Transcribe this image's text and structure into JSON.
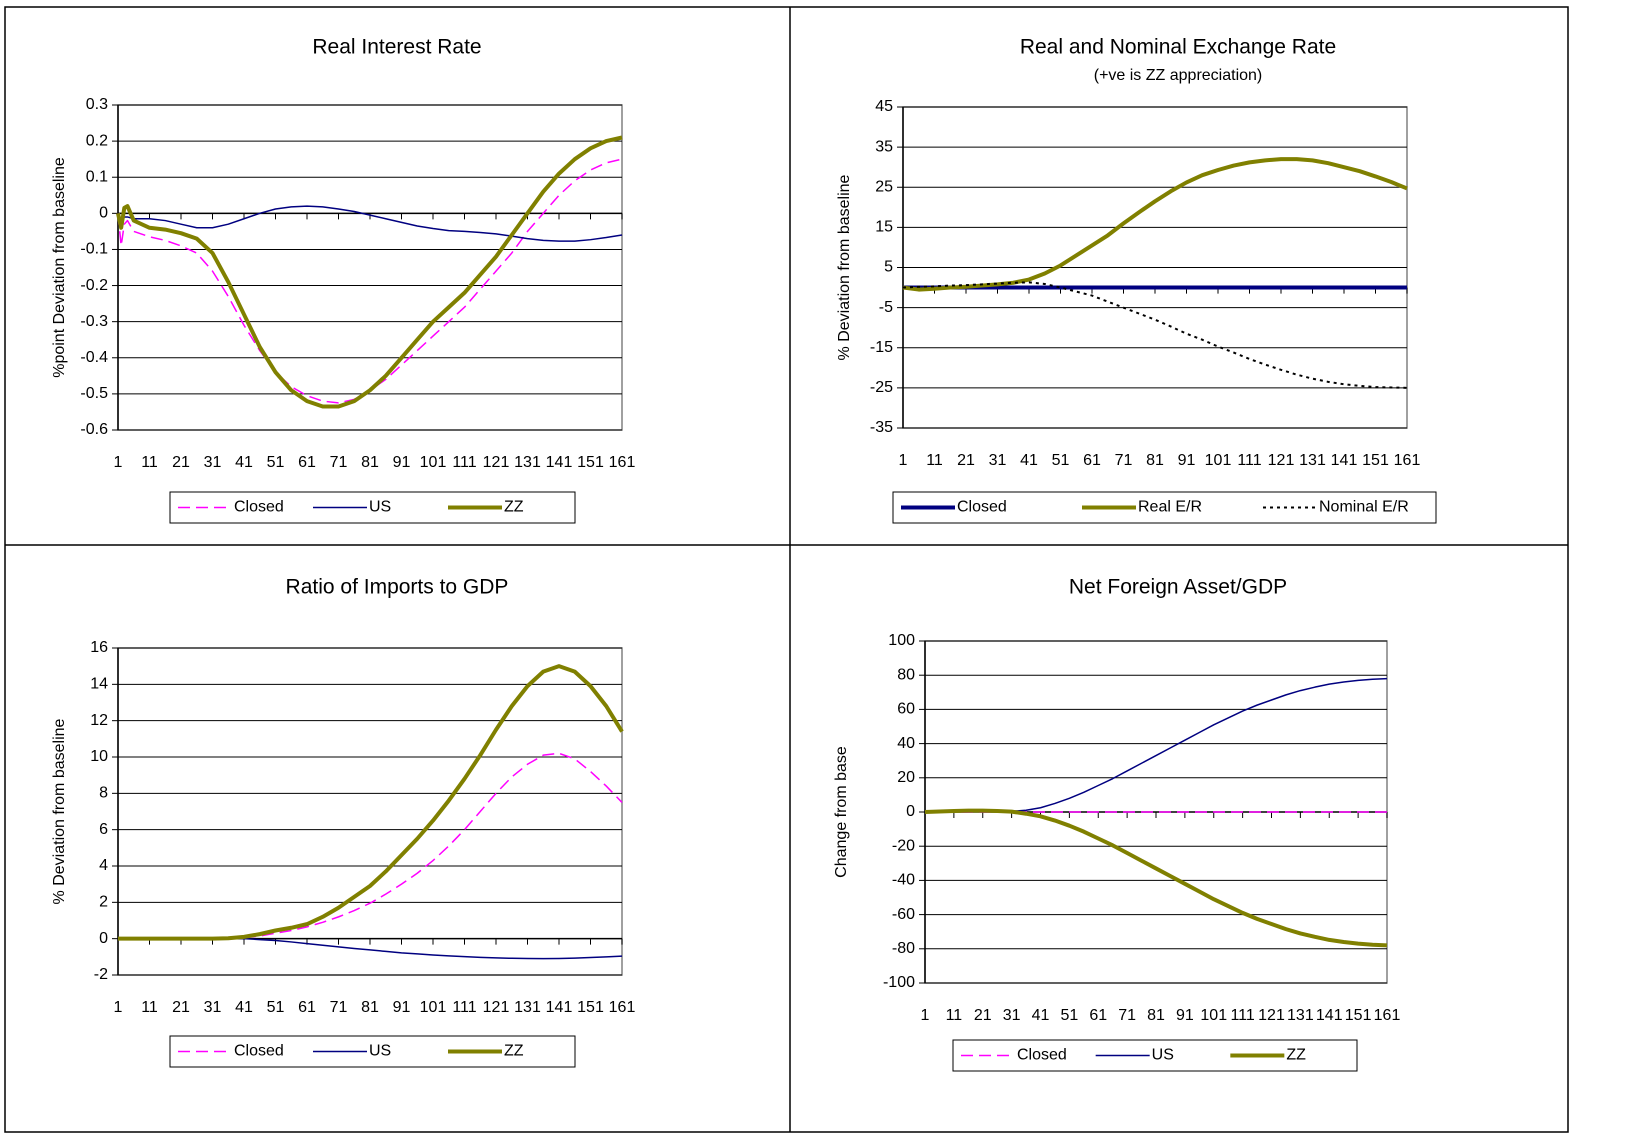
{
  "chart_data": [
    {
      "type": "line",
      "title": "Real Interest Rate",
      "y_label": "%point  Deviation from baseline",
      "x": [
        1,
        2,
        3,
        4,
        6,
        11,
        16,
        21,
        26,
        31,
        36,
        41,
        46,
        51,
        56,
        61,
        66,
        71,
        76,
        81,
        86,
        91,
        96,
        101,
        106,
        111,
        116,
        121,
        126,
        131,
        136,
        141,
        146,
        151,
        156,
        161
      ],
      "xlim": [
        1,
        161
      ],
      "xticks": [
        1,
        11,
        21,
        31,
        41,
        51,
        61,
        71,
        81,
        91,
        101,
        111,
        121,
        131,
        141,
        151,
        161
      ],
      "ylim": [
        -0.6,
        0.3
      ],
      "yticks": [
        -0.6,
        -0.5,
        -0.4,
        -0.3,
        -0.2,
        -0.1,
        0,
        0.1,
        0.2,
        0.3
      ],
      "grid": true,
      "series": [
        {
          "name": "Closed",
          "color": "#ff00ff",
          "dash": "dashed",
          "line_width": 1.5,
          "values": [
            0,
            -0.09,
            -0.03,
            -0.02,
            -0.05,
            -0.065,
            -0.075,
            -0.09,
            -0.11,
            -0.16,
            -0.23,
            -0.31,
            -0.38,
            -0.44,
            -0.48,
            -0.505,
            -0.52,
            -0.525,
            -0.515,
            -0.49,
            -0.46,
            -0.42,
            -0.38,
            -0.34,
            -0.3,
            -0.26,
            -0.21,
            -0.16,
            -0.11,
            -0.05,
            0,
            0.05,
            0.09,
            0.12,
            0.14,
            0.15
          ]
        },
        {
          "name": "US",
          "color": "#000080",
          "dash": "solid",
          "line_width": 1.5,
          "values": [
            0,
            -0.03,
            -0.01,
            -0.01,
            -0.015,
            -0.015,
            -0.02,
            -0.03,
            -0.04,
            -0.04,
            -0.03,
            -0.015,
            0,
            0.012,
            0.018,
            0.02,
            0.018,
            0.012,
            0.005,
            -0.005,
            -0.015,
            -0.025,
            -0.035,
            -0.042,
            -0.048,
            -0.05,
            -0.053,
            -0.057,
            -0.063,
            -0.07,
            -0.075,
            -0.077,
            -0.077,
            -0.073,
            -0.067,
            -0.06
          ]
        },
        {
          "name": "ZZ",
          "color": "#808000",
          "dash": "solid",
          "line_width": 4,
          "values": [
            0,
            -0.04,
            0.015,
            0.02,
            -0.02,
            -0.04,
            -0.045,
            -0.055,
            -0.07,
            -0.11,
            -0.19,
            -0.28,
            -0.37,
            -0.44,
            -0.49,
            -0.52,
            -0.535,
            -0.535,
            -0.52,
            -0.49,
            -0.45,
            -0.4,
            -0.35,
            -0.3,
            -0.26,
            -0.22,
            -0.17,
            -0.12,
            -0.06,
            0,
            0.06,
            0.11,
            0.15,
            0.18,
            0.2,
            0.21
          ]
        }
      ]
    },
    {
      "type": "line",
      "title": "Real and Nominal Exchange Rate",
      "subtitle": "(+ve is ZZ appreciation)",
      "y_label": "%  Deviation from baseline",
      "x": [
        1,
        6,
        11,
        16,
        21,
        26,
        31,
        36,
        41,
        46,
        51,
        56,
        61,
        66,
        71,
        76,
        81,
        86,
        91,
        96,
        101,
        106,
        111,
        116,
        121,
        126,
        131,
        136,
        141,
        146,
        151,
        156,
        161
      ],
      "xlim": [
        1,
        161
      ],
      "xticks": [
        1,
        11,
        21,
        31,
        41,
        51,
        61,
        71,
        81,
        91,
        101,
        111,
        121,
        131,
        141,
        151,
        161
      ],
      "ylim": [
        -35,
        45
      ],
      "yticks": [
        -35,
        -25,
        -15,
        -5,
        5,
        15,
        25,
        35,
        45
      ],
      "grid": true,
      "series": [
        {
          "name": "Closed",
          "color": "#000080",
          "dash": "solid",
          "line_width": 4,
          "values": [
            0,
            0,
            0,
            0,
            0,
            0,
            0,
            0,
            0,
            0,
            0,
            0,
            0,
            0,
            0,
            0,
            0,
            0,
            0,
            0,
            0,
            0,
            0,
            0,
            0,
            0,
            0,
            0,
            0,
            0,
            0,
            0,
            0
          ]
        },
        {
          "name": "Real E/R",
          "color": "#808000",
          "dash": "solid",
          "line_width": 4,
          "values": [
            0,
            -0.5,
            -0.3,
            0,
            0.2,
            0.5,
            0.8,
            1.2,
            2,
            3.5,
            5.5,
            8,
            10.5,
            13,
            16,
            18.8,
            21.5,
            24,
            26.2,
            28,
            29.3,
            30.4,
            31.2,
            31.7,
            32,
            32,
            31.7,
            31,
            30,
            29,
            27.7,
            26.3,
            24.7
          ]
        },
        {
          "name": "Nominal E/R",
          "color": "#000000",
          "dash": "dotted",
          "line_width": 2,
          "values": [
            0,
            0.2,
            0.3,
            0.5,
            0.6,
            0.8,
            1,
            1.2,
            1.3,
            0.9,
            0,
            -1,
            -2,
            -3.5,
            -5,
            -6.5,
            -8,
            -9.7,
            -11.5,
            -13,
            -14.7,
            -16.2,
            -17.8,
            -19.2,
            -20.5,
            -21.7,
            -22.7,
            -23.5,
            -24.1,
            -24.5,
            -24.8,
            -24.9,
            -25
          ]
        }
      ]
    },
    {
      "type": "line",
      "title": "Ratio of Imports to GDP",
      "y_label": "%  Deviation from baseline",
      "x": [
        1,
        6,
        11,
        16,
        21,
        26,
        31,
        36,
        41,
        46,
        51,
        56,
        61,
        66,
        71,
        76,
        81,
        86,
        91,
        96,
        101,
        106,
        111,
        116,
        121,
        126,
        131,
        136,
        141,
        146,
        151,
        156,
        161
      ],
      "xlim": [
        1,
        161
      ],
      "xticks": [
        1,
        11,
        21,
        31,
        41,
        51,
        61,
        71,
        81,
        91,
        101,
        111,
        121,
        131,
        141,
        151,
        161
      ],
      "ylim": [
        -2,
        16
      ],
      "yticks": [
        -2,
        0,
        2,
        4,
        6,
        8,
        10,
        12,
        14,
        16
      ],
      "grid": true,
      "series": [
        {
          "name": "Closed",
          "color": "#ff00ff",
          "dash": "dashed",
          "line_width": 1.5,
          "values": [
            0,
            0,
            0,
            0,
            0,
            0,
            0,
            0.02,
            0.05,
            0.15,
            0.3,
            0.45,
            0.65,
            0.9,
            1.2,
            1.55,
            1.95,
            2.45,
            3,
            3.6,
            4.3,
            5.1,
            6,
            7,
            8,
            8.9,
            9.6,
            10.1,
            10.2,
            9.9,
            9.2,
            8.4,
            7.5
          ]
        },
        {
          "name": "US",
          "color": "#000080",
          "dash": "solid",
          "line_width": 1.5,
          "values": [
            0,
            0,
            0,
            0,
            0,
            0,
            0,
            0,
            0,
            -0.05,
            -0.1,
            -0.18,
            -0.27,
            -0.36,
            -0.45,
            -0.54,
            -0.62,
            -0.7,
            -0.78,
            -0.84,
            -0.9,
            -0.95,
            -0.99,
            -1.03,
            -1.06,
            -1.08,
            -1.09,
            -1.1,
            -1.09,
            -1.07,
            -1.04,
            -1,
            -0.96
          ]
        },
        {
          "name": "ZZ",
          "color": "#808000",
          "dash": "solid",
          "line_width": 4,
          "values": [
            0,
            0,
            0,
            0,
            0,
            0,
            0,
            0.02,
            0.1,
            0.25,
            0.45,
            0.6,
            0.8,
            1.2,
            1.7,
            2.3,
            2.9,
            3.7,
            4.6,
            5.5,
            6.5,
            7.6,
            8.8,
            10.1,
            11.5,
            12.8,
            13.9,
            14.7,
            15,
            14.7,
            13.9,
            12.8,
            11.4
          ]
        }
      ]
    },
    {
      "type": "line",
      "title": "Net Foreign Asset/GDP",
      "y_label": "Change from base",
      "x": [
        1,
        6,
        11,
        16,
        21,
        26,
        31,
        36,
        41,
        46,
        51,
        56,
        61,
        66,
        71,
        76,
        81,
        86,
        91,
        96,
        101,
        106,
        111,
        116,
        121,
        126,
        131,
        136,
        141,
        146,
        151,
        156,
        161
      ],
      "xlim": [
        1,
        161
      ],
      "xticks": [
        1,
        11,
        21,
        31,
        41,
        51,
        61,
        71,
        81,
        91,
        101,
        111,
        121,
        131,
        141,
        151,
        161
      ],
      "ylim": [
        -100,
        100
      ],
      "yticks": [
        -100,
        -80,
        -60,
        -40,
        -20,
        0,
        20,
        40,
        60,
        80,
        100
      ],
      "grid": true,
      "series": [
        {
          "name": "Closed",
          "color": "#ff00ff",
          "dash": "dashed",
          "line_width": 1.5,
          "values": [
            0,
            0,
            0,
            0,
            0,
            0,
            0,
            0,
            0,
            0,
            0,
            0,
            0,
            0,
            0,
            0,
            0,
            0,
            0,
            0,
            0,
            0,
            0,
            0,
            0,
            0,
            0,
            0,
            0,
            0,
            0,
            0,
            0
          ]
        },
        {
          "name": "US",
          "color": "#000080",
          "dash": "solid",
          "line_width": 1.5,
          "values": [
            0,
            0.3,
            0.6,
            0.8,
            0.8,
            0.6,
            0.4,
            1,
            2.5,
            5,
            8,
            11.5,
            15.5,
            19.5,
            24,
            28.5,
            33,
            37.5,
            42,
            46.5,
            51,
            55,
            59,
            62.5,
            65.5,
            68.5,
            71,
            73,
            74.8,
            76,
            77,
            77.6,
            78
          ]
        },
        {
          "name": "ZZ",
          "color": "#808000",
          "dash": "solid",
          "line_width": 4,
          "values": [
            0,
            0.3,
            0.6,
            0.8,
            0.8,
            0.6,
            0.2,
            -1,
            -2.5,
            -5,
            -8,
            -11.5,
            -15.5,
            -19.5,
            -24,
            -28.5,
            -33,
            -37.5,
            -42,
            -46.5,
            -51,
            -55,
            -59,
            -62.5,
            -65.5,
            -68.5,
            -71,
            -73,
            -74.8,
            -76,
            -77,
            -77.6,
            -78
          ]
        }
      ]
    }
  ]
}
